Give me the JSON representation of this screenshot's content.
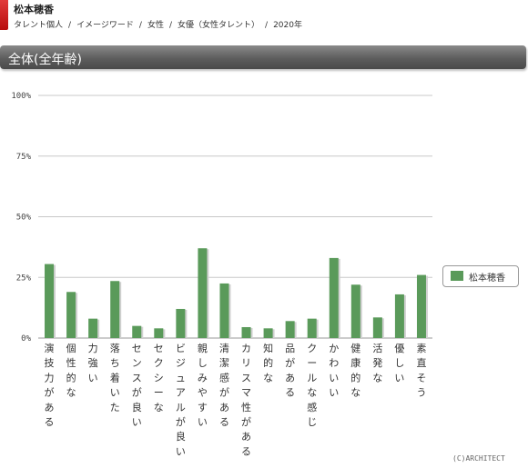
{
  "header": {
    "talent_name": "松本穂香",
    "breadcrumb": [
      "タレント個人",
      "イメージワード",
      "女性",
      "女優（女性タレント）",
      "2020年"
    ],
    "separator": "/"
  },
  "section": {
    "title": "全体(全年齢)"
  },
  "chart_data": {
    "type": "bar",
    "categories": [
      "演技力がある",
      "個性的な",
      "力強い",
      "落ち着いた",
      "センスが良い",
      "セクシーな",
      "ビジュアルが良い",
      "親しみやすい",
      "清潔感がある",
      "カリスマ性がある",
      "知的な",
      "品がある",
      "クールな感じ",
      "かわいい",
      "健康的な",
      "活発な",
      "優しい",
      "素直そう"
    ],
    "series": [
      {
        "name": "松本穂香",
        "color": "#5a9a5a",
        "values": [
          30.5,
          19,
          8,
          23.5,
          5,
          4,
          12,
          37,
          22.5,
          4.5,
          4,
          7,
          8,
          33,
          22,
          8.5,
          18,
          26
        ]
      }
    ],
    "yticks": [
      "0%",
      "25%",
      "50%",
      "75%",
      "100%"
    ],
    "ylim": [
      0,
      100
    ],
    "legend_position": "right",
    "grid": true
  },
  "footer": {
    "copyright": "(C)ARCHITECT"
  }
}
